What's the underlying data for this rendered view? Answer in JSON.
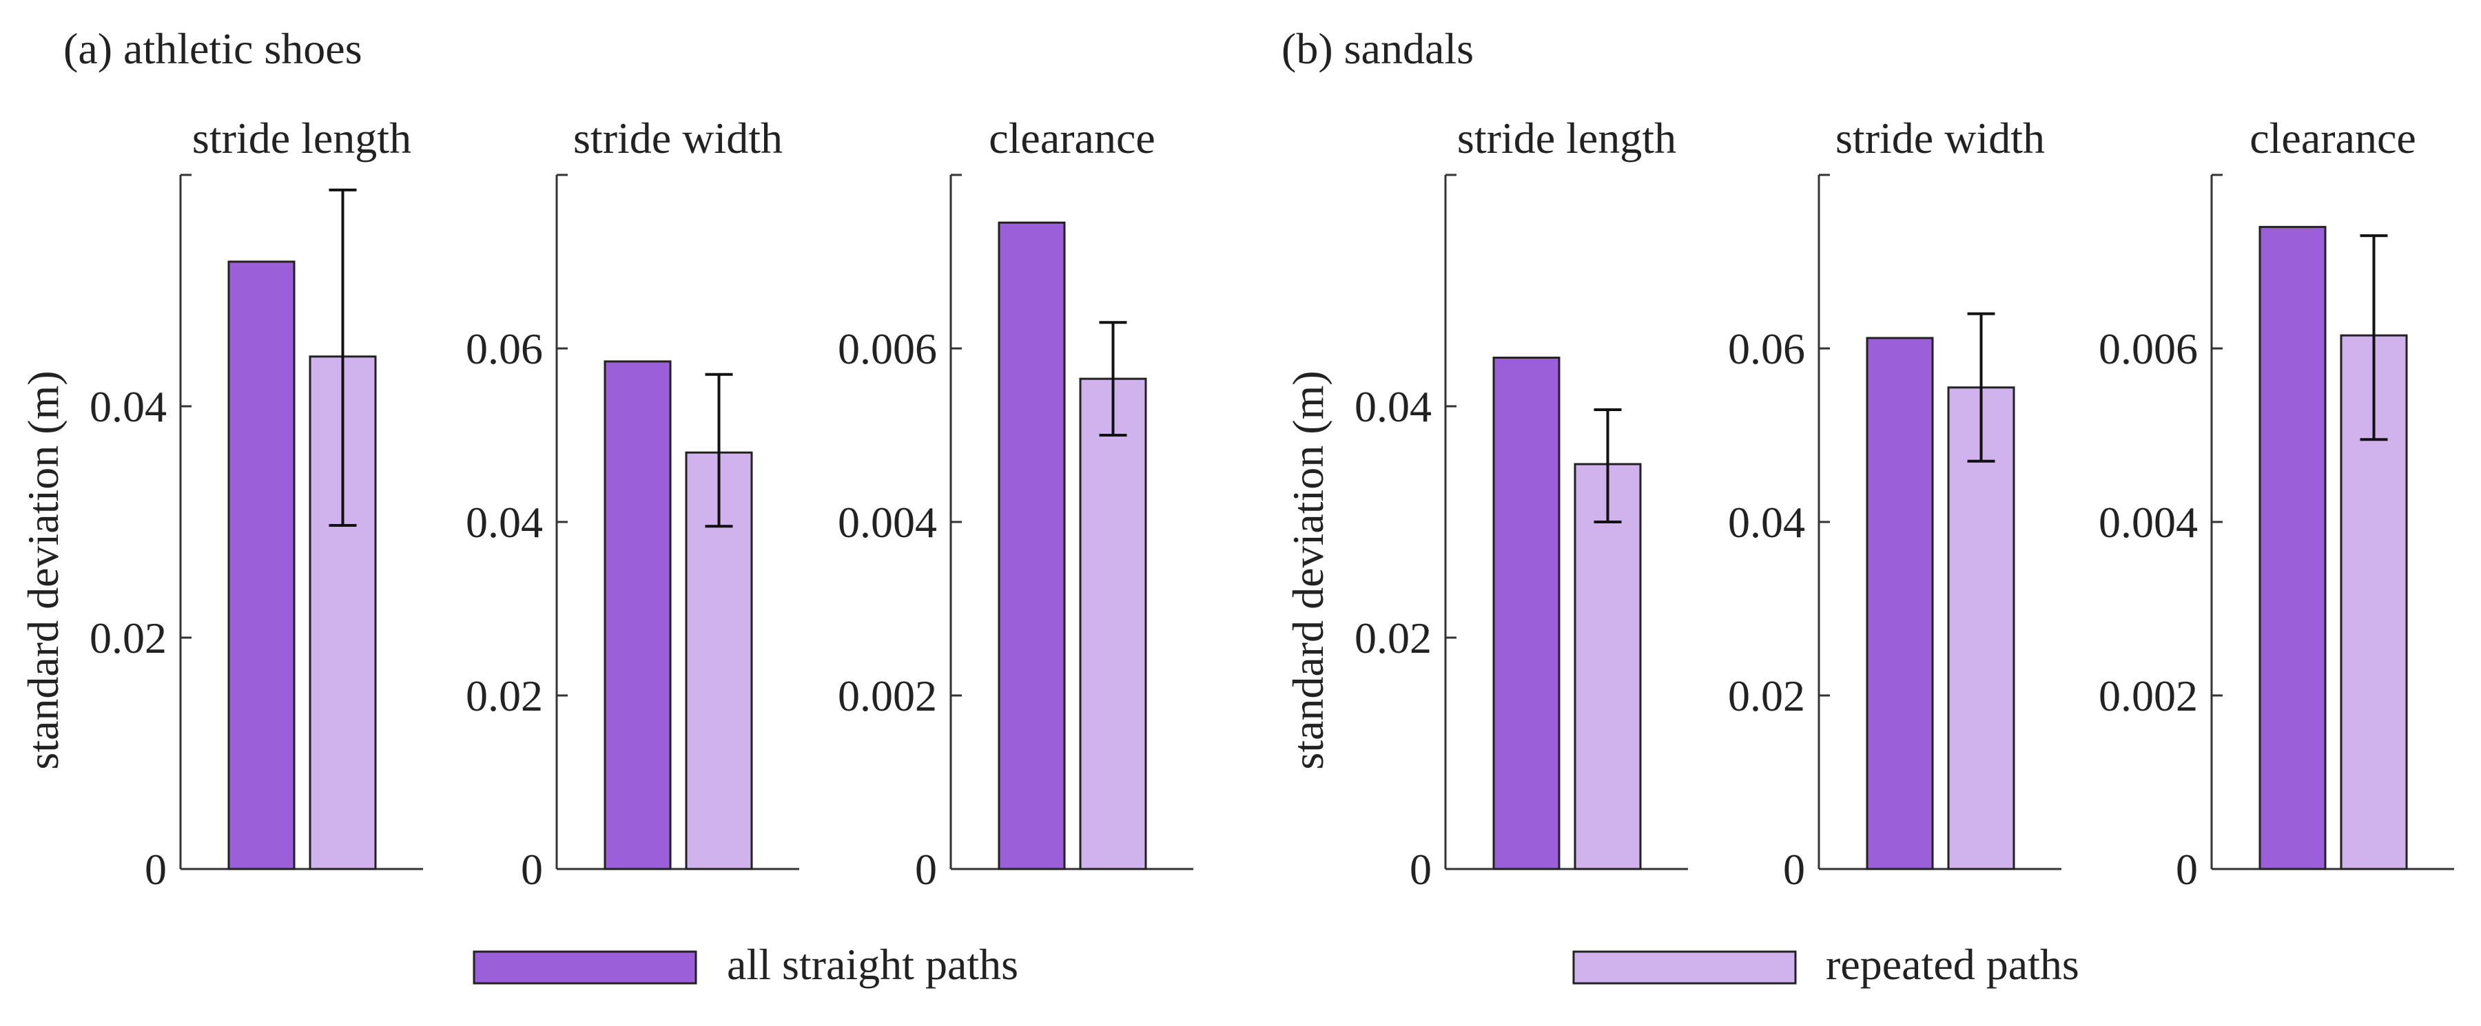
{
  "colors": {
    "all_straight": "#9b5fd9",
    "repeated": "#d0b2ec"
  },
  "legend": {
    "items": [
      {
        "label": "all straight paths",
        "color_key": "all_straight"
      },
      {
        "label": "repeated paths",
        "color_key": "repeated"
      }
    ]
  },
  "chart_data": [
    {
      "type": "bar",
      "panel": "(a) athletic shoes",
      "title": "stride length",
      "ylabel": "standard deviation (m)",
      "ylim": [
        0,
        0.06
      ],
      "yticks": [
        0,
        0.02,
        0.04
      ],
      "ytick_labels": [
        "0",
        "0.02",
        "0.04"
      ],
      "series": [
        {
          "name": "all straight paths",
          "value": 0.0525
        },
        {
          "name": "repeated paths",
          "value": 0.0443,
          "err_low": 0.0297,
          "err_high": 0.0587
        }
      ]
    },
    {
      "type": "bar",
      "panel": "(a) athletic shoes",
      "title": "stride width",
      "ylim": [
        0,
        0.08
      ],
      "yticks": [
        0,
        0.02,
        0.04,
        0.06
      ],
      "ytick_labels": [
        "0",
        "0.02",
        "0.04",
        "0.06"
      ],
      "series": [
        {
          "name": "all straight paths",
          "value": 0.0585
        },
        {
          "name": "repeated paths",
          "value": 0.048,
          "err_low": 0.0395,
          "err_high": 0.057
        }
      ]
    },
    {
      "type": "bar",
      "panel": "(a) athletic shoes",
      "title": "clearance",
      "ylim": [
        0,
        0.008
      ],
      "yticks": [
        0,
        0.002,
        0.004,
        0.006
      ],
      "ytick_labels": [
        "0",
        "0.002",
        "0.004",
        "0.006"
      ],
      "series": [
        {
          "name": "all straight paths",
          "value": 0.00745
        },
        {
          "name": "repeated paths",
          "value": 0.00565,
          "err_low": 0.005,
          "err_high": 0.0063
        }
      ]
    },
    {
      "type": "bar",
      "panel": "(b) sandals",
      "title": "stride length",
      "ylabel": "standard deviation (m)",
      "ylim": [
        0,
        0.06
      ],
      "yticks": [
        0,
        0.02,
        0.04
      ],
      "ytick_labels": [
        "0",
        "0.02",
        "0.04"
      ],
      "series": [
        {
          "name": "all straight paths",
          "value": 0.0442
        },
        {
          "name": "repeated paths",
          "value": 0.035,
          "err_low": 0.03,
          "err_high": 0.0397
        }
      ]
    },
    {
      "type": "bar",
      "panel": "(b) sandals",
      "title": "stride width",
      "ylim": [
        0,
        0.08
      ],
      "yticks": [
        0,
        0.02,
        0.04,
        0.06
      ],
      "ytick_labels": [
        "0",
        "0.02",
        "0.04",
        "0.06"
      ],
      "series": [
        {
          "name": "all straight paths",
          "value": 0.0612
        },
        {
          "name": "repeated paths",
          "value": 0.0555,
          "err_low": 0.047,
          "err_high": 0.064
        }
      ]
    },
    {
      "type": "bar",
      "panel": "(b) sandals",
      "title": "clearance",
      "ylim": [
        0,
        0.008
      ],
      "yticks": [
        0,
        0.002,
        0.004,
        0.006
      ],
      "ytick_labels": [
        "0",
        "0.002",
        "0.004",
        "0.006"
      ],
      "series": [
        {
          "name": "all straight paths",
          "value": 0.0074
        },
        {
          "name": "repeated paths",
          "value": 0.00615,
          "err_low": 0.00495,
          "err_high": 0.0073
        }
      ]
    }
  ]
}
